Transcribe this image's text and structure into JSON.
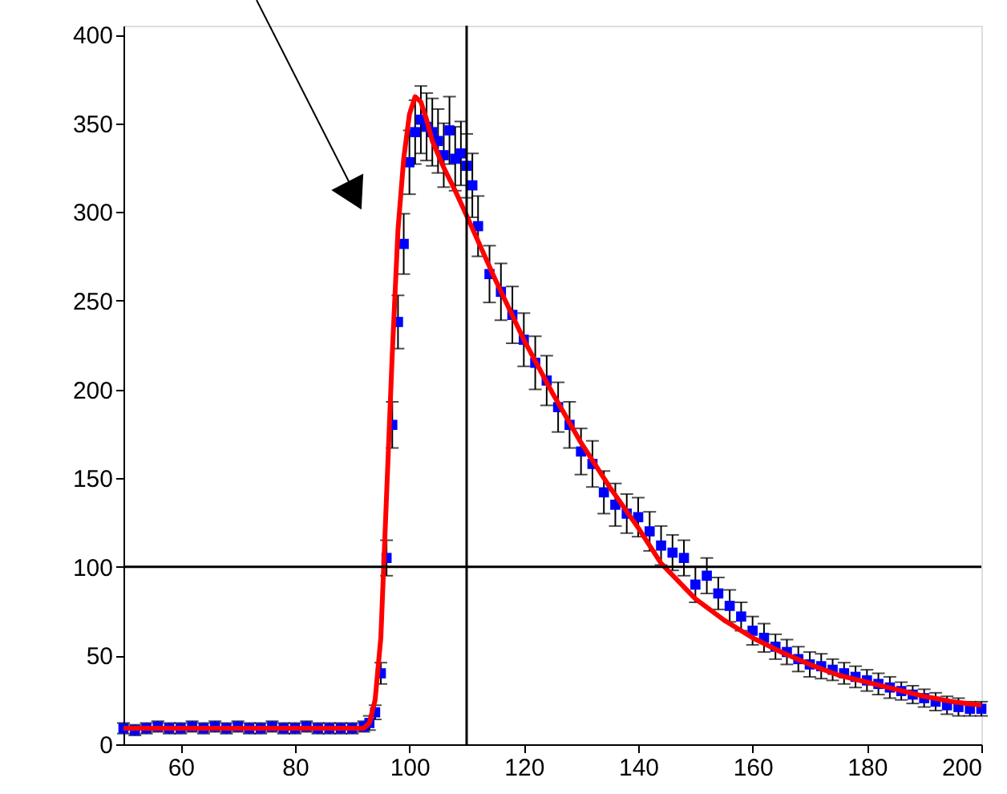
{
  "chart_data": {
    "type": "scatter",
    "xlim": [
      50,
      200
    ],
    "xticks": [
      60,
      80,
      100,
      120,
      140,
      160,
      180,
      200
    ],
    "ylim": [
      0,
      405
    ],
    "yticks": [
      0,
      50,
      100,
      150,
      200,
      250,
      300,
      350,
      400
    ],
    "grid": false,
    "ref_lines": [
      {
        "axis": "x",
        "value": 110,
        "color": "#000000"
      },
      {
        "axis": "y",
        "value": 100,
        "color": "#000000"
      }
    ],
    "series": [
      {
        "color": "#0000ff",
        "marker": "square",
        "x": [
          50,
          52,
          54,
          56,
          58,
          60,
          62,
          64,
          66,
          68,
          70,
          72,
          74,
          76,
          78,
          80,
          82,
          84,
          86,
          88,
          90,
          92,
          93,
          94,
          95,
          96,
          97,
          98,
          99,
          100,
          101,
          102,
          103,
          104,
          105,
          106,
          107,
          108,
          109,
          110,
          111,
          112,
          114,
          116,
          118,
          120,
          122,
          124,
          126,
          128,
          130,
          132,
          134,
          136,
          138,
          140,
          142,
          144,
          146,
          148,
          150,
          152,
          154,
          156,
          158,
          160,
          162,
          164,
          166,
          168,
          170,
          172,
          174,
          176,
          178,
          180,
          182,
          184,
          186,
          188,
          190,
          192,
          194,
          196,
          198,
          200
        ],
        "values": [
          9,
          8,
          9,
          10,
          9,
          9,
          10,
          9,
          10,
          9,
          10,
          9,
          9,
          10,
          9,
          9,
          10,
          9,
          9,
          9,
          9,
          10,
          12,
          18,
          40,
          105,
          180,
          238,
          282,
          328,
          345,
          352,
          348,
          345,
          340,
          332,
          346,
          330,
          333,
          326,
          315,
          292,
          265,
          255,
          242,
          228,
          215,
          205,
          190,
          180,
          165,
          158,
          142,
          135,
          130,
          128,
          120,
          112,
          108,
          105,
          90,
          95,
          85,
          78,
          72,
          64,
          60,
          55,
          52,
          48,
          45,
          44,
          42,
          40,
          38,
          36,
          34,
          32,
          30,
          28,
          26,
          24,
          22,
          21,
          20,
          20
        ],
        "errors": [
          3,
          3,
          3,
          3,
          3,
          3,
          3,
          3,
          3,
          3,
          3,
          3,
          3,
          3,
          3,
          3,
          3,
          3,
          3,
          3,
          3,
          3,
          4,
          4,
          6,
          10,
          13,
          15,
          17,
          18,
          18,
          19,
          19,
          19,
          18,
          18,
          19,
          18,
          18,
          18,
          18,
          17,
          16,
          16,
          16,
          15,
          15,
          14,
          14,
          13,
          13,
          13,
          12,
          12,
          11,
          11,
          11,
          11,
          10,
          10,
          10,
          10,
          9,
          9,
          8,
          8,
          8,
          7,
          7,
          7,
          7,
          7,
          6,
          6,
          6,
          6,
          6,
          6,
          5,
          5,
          5,
          5,
          5,
          5,
          4,
          4
        ]
      },
      {
        "type": "line",
        "color": "#ff0000",
        "line_style": "solid",
        "x": [
          50,
          60,
          70,
          80,
          90,
          92,
          93,
          94,
          95,
          96,
          97,
          98,
          99,
          100,
          101,
          102,
          103,
          104,
          106,
          108,
          110,
          115,
          120,
          125,
          130,
          135,
          140,
          144,
          150,
          155,
          160,
          165,
          170,
          175,
          180,
          185,
          190,
          195,
          200
        ],
        "values": [
          9,
          9,
          9,
          9,
          9,
          9,
          12,
          25,
          60,
          140,
          220,
          290,
          330,
          355,
          365,
          362,
          352,
          340,
          325,
          312,
          298,
          262,
          228,
          198,
          170,
          145,
          122,
          102,
          82,
          70,
          60,
          52,
          45,
          39,
          35,
          31,
          27,
          24,
          22
        ]
      }
    ]
  }
}
